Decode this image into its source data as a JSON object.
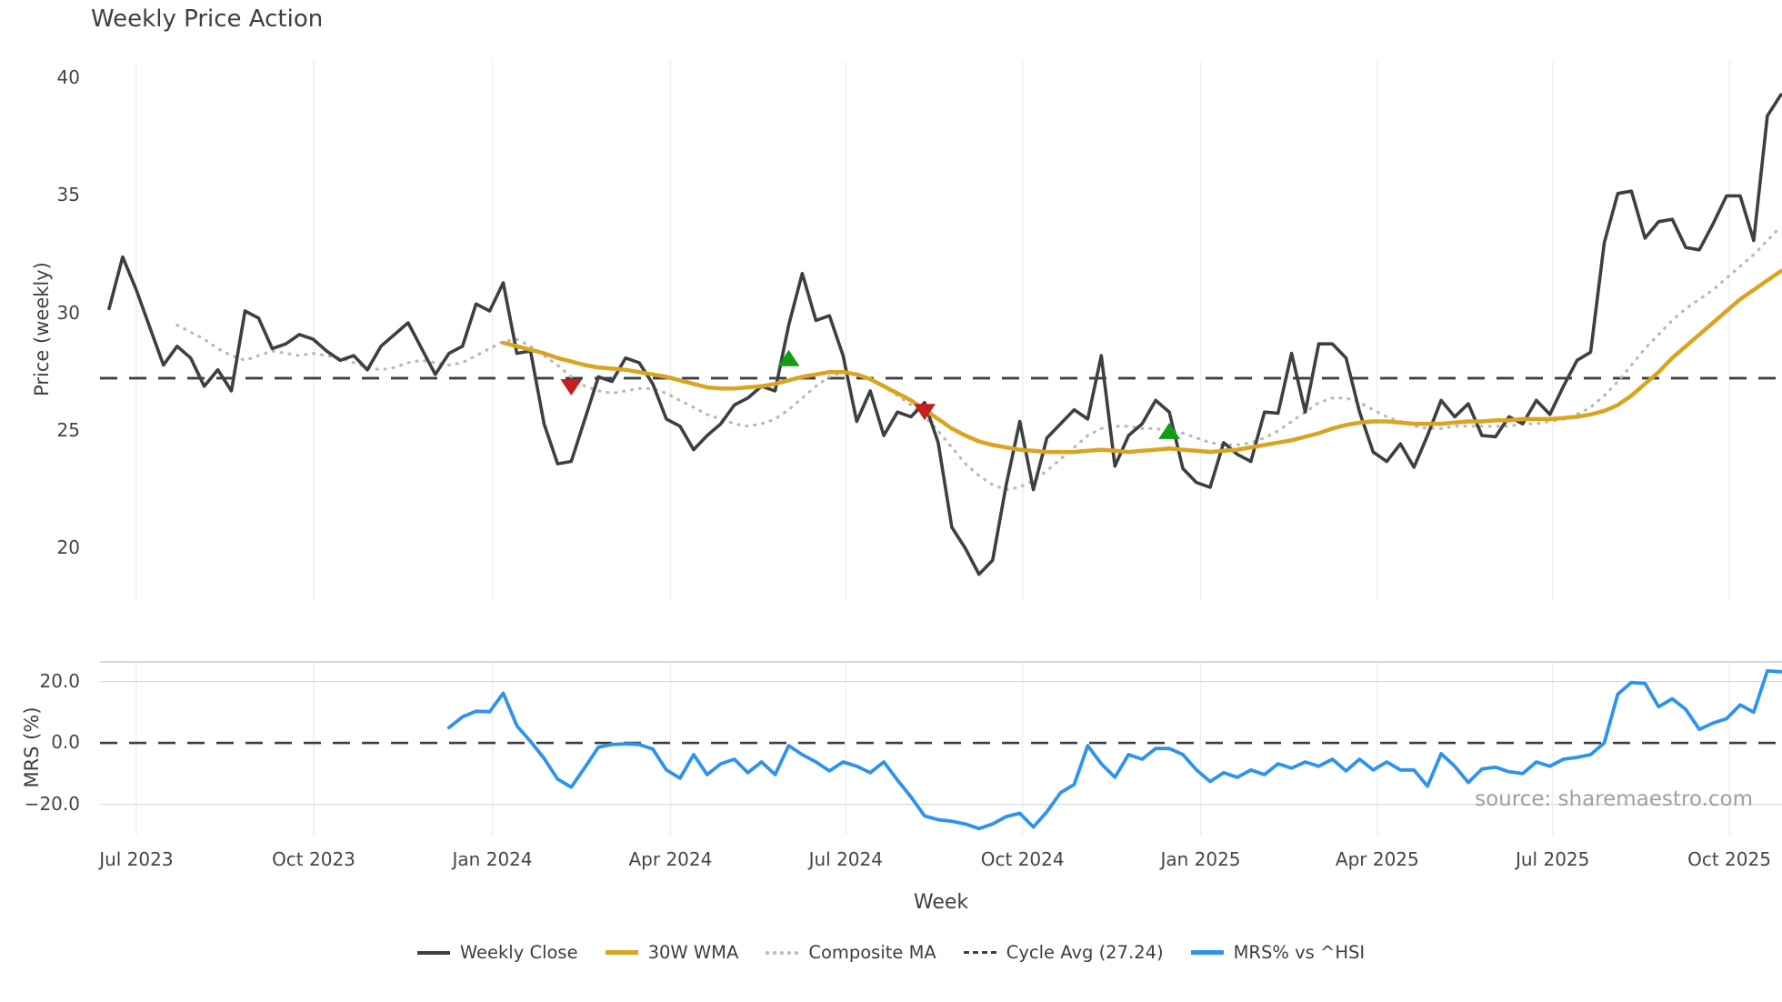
{
  "title": "Weekly Price Action",
  "watermark": "source: sharemaestro.com",
  "axes": {
    "price_label": "Price (weekly)",
    "mrs_label": "MRS (%)",
    "week_label": "Week"
  },
  "legend": [
    {
      "label": "Weekly Close",
      "color": "#3d4043",
      "style": "solid",
      "thickness": 4
    },
    {
      "label": "30W WMA",
      "color": "#D9A521",
      "style": "solid",
      "thickness": 5
    },
    {
      "label": "Composite MA",
      "color": "#b9b9b9",
      "style": "dotted",
      "thickness": 4
    },
    {
      "label": "Cycle Avg (27.24)",
      "color": "#3a3f44",
      "style": "dashed",
      "thickness": 3
    },
    {
      "label": "MRS% vs ^HSI",
      "color": "#2E93EA",
      "style": "solid",
      "thickness": 5
    }
  ],
  "colors": {
    "weekly_close": "#3d4043",
    "wma": "#D9A521",
    "composite": "#b9b9b9",
    "cycle_avg": "#3a3f44",
    "mrs": "#2E93EA",
    "buy_marker": "#149c14",
    "sell_marker": "#c81e1e",
    "gridline": "#edeff1",
    "mrs_gridline": "#dcdcdc",
    "mrs_top_spine": "#c9cccf"
  },
  "chart_data": {
    "type": "line",
    "title": "Weekly Price Action",
    "x_unit": "weekly index starting 2023-06-19",
    "xticks": [
      {
        "week": 2.0,
        "label": "Jul 2023"
      },
      {
        "week": 15.05,
        "label": "Oct 2023"
      },
      {
        "week": 28.2,
        "label": "Jan 2024"
      },
      {
        "week": 41.3,
        "label": "Apr 2024"
      },
      {
        "week": 54.2,
        "label": "Jul 2024"
      },
      {
        "week": 67.2,
        "label": "Oct 2024"
      },
      {
        "week": 80.3,
        "label": "Jan 2025"
      },
      {
        "week": 93.3,
        "label": "Apr 2025"
      },
      {
        "week": 106.2,
        "label": "Jul 2025"
      },
      {
        "week": 119.2,
        "label": "Oct 2025"
      }
    ],
    "price_panel": {
      "ylabel": "Price (weekly)",
      "ylim": [
        17.8,
        40.7
      ],
      "yticks": [
        {
          "v": 40,
          "label": "40"
        },
        {
          "v": 35,
          "label": "35"
        },
        {
          "v": 30,
          "label": "30"
        },
        {
          "v": 25,
          "label": "25"
        },
        {
          "v": 20,
          "label": "20"
        }
      ],
      "cycle_avg": 27.24,
      "series": [
        {
          "name": "Weekly Close",
          "style": "solid",
          "width": 3.6,
          "color_key": "weekly_close",
          "start_week": 0,
          "values": [
            30.2,
            32.4,
            31.0,
            29.4,
            27.8,
            28.6,
            28.1,
            26.9,
            27.6,
            26.7,
            30.1,
            29.8,
            28.5,
            28.7,
            29.1,
            28.9,
            28.4,
            28.0,
            28.2,
            27.6,
            28.6,
            29.1,
            29.6,
            28.5,
            27.4,
            28.3,
            28.6,
            30.4,
            30.1,
            31.3,
            28.3,
            28.4,
            25.3,
            23.6,
            23.7,
            25.5,
            27.3,
            27.1,
            28.1,
            27.9,
            27.0,
            25.5,
            25.2,
            24.2,
            24.8,
            25.3,
            26.1,
            26.4,
            26.9,
            26.7,
            29.5,
            31.7,
            29.7,
            29.9,
            28.2,
            25.4,
            26.7,
            24.8,
            25.8,
            25.6,
            26.2,
            24.5,
            20.9,
            20.0,
            18.9,
            19.5,
            22.7,
            25.4,
            22.5,
            24.7,
            25.3,
            25.9,
            25.5,
            28.2,
            23.5,
            24.8,
            25.3,
            26.3,
            25.8,
            23.4,
            22.8,
            22.6,
            24.5,
            24.0,
            23.7,
            25.8,
            25.75,
            28.3,
            25.8,
            28.7,
            28.7,
            28.1,
            25.8,
            24.1,
            23.7,
            24.45,
            23.45,
            24.8,
            26.3,
            25.6,
            26.15,
            24.8,
            24.75,
            25.6,
            25.3,
            26.3,
            25.7,
            26.9,
            28.0,
            28.35,
            33.0,
            35.1,
            35.2,
            33.2,
            33.9,
            34.0,
            32.8,
            32.7,
            33.8,
            35.0,
            35.0,
            33.1,
            38.4,
            39.3
          ]
        },
        {
          "name": "30W WMA",
          "style": "solid",
          "width": 4.5,
          "color_key": "wma",
          "start_week": 29,
          "values": [
            28.75,
            28.6,
            28.45,
            28.3,
            28.1,
            27.95,
            27.8,
            27.7,
            27.65,
            27.6,
            27.5,
            27.4,
            27.3,
            27.15,
            27.0,
            26.85,
            26.8,
            26.8,
            26.85,
            26.9,
            27.0,
            27.15,
            27.3,
            27.4,
            27.5,
            27.5,
            27.4,
            27.2,
            26.9,
            26.6,
            26.3,
            25.9,
            25.5,
            25.1,
            24.8,
            24.55,
            24.4,
            24.3,
            24.2,
            24.15,
            24.1,
            24.1,
            24.1,
            24.15,
            24.2,
            24.15,
            24.1,
            24.15,
            24.2,
            24.25,
            24.2,
            24.15,
            24.1,
            24.15,
            24.2,
            24.3,
            24.4,
            24.5,
            24.6,
            24.75,
            24.9,
            25.1,
            25.25,
            25.35,
            25.4,
            25.4,
            25.35,
            25.3,
            25.3,
            25.3,
            25.35,
            25.4,
            25.4,
            25.45,
            25.45,
            25.5,
            25.5,
            25.5,
            25.55,
            25.6,
            25.7,
            25.85,
            26.1,
            26.5,
            27.0,
            27.5,
            28.1,
            28.6,
            29.1,
            29.6,
            30.1,
            30.6,
            31.0,
            31.4,
            31.8
          ]
        },
        {
          "name": "Composite MA",
          "style": "dotted",
          "width": 3.2,
          "color_key": "composite",
          "start_week": 5,
          "values": [
            29.5,
            29.2,
            28.9,
            28.5,
            28.2,
            28.0,
            28.2,
            28.4,
            28.3,
            28.2,
            28.3,
            28.2,
            28.1,
            27.9,
            27.7,
            27.6,
            27.7,
            27.9,
            28.0,
            27.9,
            27.8,
            27.9,
            28.2,
            28.5,
            28.8,
            28.9,
            28.6,
            28.2,
            27.8,
            27.3,
            26.9,
            26.7,
            26.6,
            26.7,
            26.8,
            26.8,
            26.6,
            26.3,
            26.0,
            25.7,
            25.5,
            25.3,
            25.2,
            25.3,
            25.5,
            25.9,
            26.4,
            26.9,
            27.3,
            27.5,
            27.4,
            27.2,
            26.9,
            26.5,
            26.1,
            25.6,
            25.0,
            24.3,
            23.6,
            23.1,
            22.7,
            22.5,
            22.6,
            22.9,
            23.3,
            23.8,
            24.3,
            24.8,
            25.1,
            25.2,
            25.2,
            25.1,
            25.1,
            25.0,
            24.9,
            24.7,
            24.5,
            24.4,
            24.4,
            24.5,
            24.7,
            25.0,
            25.4,
            25.8,
            26.2,
            26.4,
            26.4,
            26.2,
            25.9,
            25.6,
            25.4,
            25.2,
            25.1,
            25.1,
            25.2,
            25.2,
            25.2,
            25.2,
            25.2,
            25.3,
            25.3,
            25.4,
            25.5,
            25.7,
            26.0,
            26.5,
            27.1,
            27.8,
            28.5,
            29.1,
            29.7,
            30.2,
            30.6,
            31.0,
            31.5,
            32.0,
            32.5,
            33.1,
            33.7
          ]
        }
      ],
      "markers": {
        "sell": {
          "shape": "triangle-down",
          "color_key": "sell_marker",
          "points": [
            {
              "week": 34,
              "value": 26.85
            },
            {
              "week": 60,
              "value": 25.8
            }
          ]
        },
        "buy": {
          "shape": "triangle-up",
          "color_key": "buy_marker",
          "points": [
            {
              "week": 50,
              "value": 28.1
            },
            {
              "week": 78,
              "value": 25.0
            }
          ]
        }
      }
    },
    "mrs_panel": {
      "ylabel": "MRS (%)",
      "ylim": [
        -29.9,
        26.4
      ],
      "yticks": [
        {
          "v": 20,
          "label": "20.0"
        },
        {
          "v": 0,
          "label": "0.0"
        },
        {
          "v": -20,
          "label": "−20.0"
        }
      ],
      "zero_line": 0,
      "series": [
        {
          "name": "MRS% vs ^HSI",
          "style": "solid",
          "width": 3.8,
          "color_key": "mrs",
          "start_week": 25,
          "values": [
            5.0,
            8.5,
            10.3,
            10.2,
            16.2,
            5.6,
            0.5,
            -5.0,
            -11.8,
            -14.4,
            -8.0,
            -1.4,
            -0.5,
            -0.3,
            -0.5,
            -2.0,
            -8.8,
            -11.5,
            -3.8,
            -10.3,
            -6.8,
            -5.3,
            -9.7,
            -6.2,
            -10.3,
            -0.9,
            -3.8,
            -6.2,
            -9.1,
            -6.2,
            -7.6,
            -9.7,
            -6.2,
            -12.1,
            -17.6,
            -23.8,
            -25.0,
            -25.5,
            -26.4,
            -27.9,
            -26.4,
            -24.0,
            -22.9,
            -27.4,
            -22.4,
            -16.2,
            -13.5,
            -0.9,
            -6.8,
            -11.2,
            -3.8,
            -5.3,
            -1.8,
            -1.8,
            -3.8,
            -8.8,
            -12.6,
            -9.7,
            -11.2,
            -8.8,
            -10.3,
            -6.8,
            -8.2,
            -6.2,
            -7.6,
            -5.3,
            -9.1,
            -5.3,
            -8.8,
            -6.2,
            -8.8,
            -8.8,
            -14.1,
            -3.5,
            -7.6,
            -12.9,
            -8.5,
            -7.9,
            -9.4,
            -10.0,
            -6.2,
            -7.6,
            -5.3,
            -4.7,
            -3.8,
            0.0,
            15.9,
            19.7,
            19.4,
            11.8,
            14.4,
            10.9,
            4.4,
            6.5,
            7.9,
            12.4,
            10.0,
            23.5,
            23.2
          ]
        }
      ]
    }
  }
}
